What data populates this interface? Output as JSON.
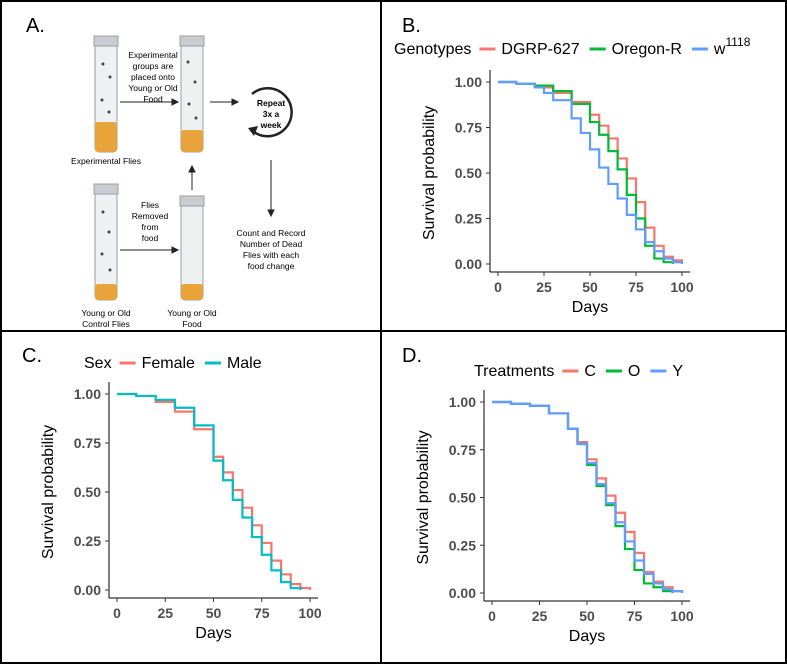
{
  "panel_a": {
    "label": "A.",
    "note_top": [
      "Experimental",
      "groups are",
      "placed onto",
      "Young or Old",
      "Food"
    ],
    "repeat": [
      "Repeat",
      "3x a",
      "week"
    ],
    "experimental_flies": "Experimental Flies",
    "flies_removed": [
      "Flies",
      "Removed",
      "from",
      "food"
    ],
    "count_record": [
      "Count and Record",
      "Number of Dead",
      "Flies with each",
      "food change"
    ],
    "control_flies": [
      "Young or Old",
      "Control Flies"
    ],
    "food": [
      "Young or Old",
      "Food"
    ]
  },
  "chart_data": [
    {
      "panel_label": "B.",
      "type": "line",
      "legend_title": "Genotypes",
      "series": [
        {
          "name": "DGRP-627",
          "color": "#F8766D",
          "x": [
            0,
            10,
            20,
            30,
            40,
            50,
            55,
            60,
            65,
            70,
            75,
            80,
            85,
            90,
            95,
            100
          ],
          "y": [
            1.0,
            0.99,
            0.97,
            0.94,
            0.89,
            0.82,
            0.76,
            0.69,
            0.58,
            0.47,
            0.34,
            0.2,
            0.1,
            0.04,
            0.02,
            0.0
          ]
        },
        {
          "name": "Oregon-R",
          "color": "#00BA38",
          "x": [
            0,
            10,
            20,
            30,
            40,
            50,
            55,
            60,
            65,
            70,
            75,
            80,
            85,
            90,
            95
          ],
          "y": [
            1.0,
            0.99,
            0.98,
            0.95,
            0.88,
            0.78,
            0.71,
            0.62,
            0.52,
            0.38,
            0.25,
            0.1,
            0.03,
            0.01,
            0.0
          ]
        },
        {
          "name": "w1118",
          "name_base": "w",
          "name_sup": "1118",
          "color": "#619CFF",
          "x": [
            0,
            10,
            20,
            25,
            30,
            40,
            45,
            50,
            55,
            60,
            65,
            70,
            75,
            80,
            85,
            90,
            95,
            100
          ],
          "y": [
            1.0,
            0.99,
            0.97,
            0.94,
            0.9,
            0.8,
            0.72,
            0.63,
            0.53,
            0.44,
            0.36,
            0.27,
            0.19,
            0.12,
            0.07,
            0.03,
            0.01,
            0.0
          ]
        }
      ],
      "xlabel": "Days",
      "ylabel": "Survival probability",
      "xlim": [
        0,
        100
      ],
      "ylim": [
        0,
        1
      ],
      "xticks": [
        "0",
        "25",
        "50",
        "75",
        "100"
      ],
      "yticks": [
        "0.00",
        "0.25",
        "0.50",
        "0.75",
        "1.00"
      ]
    },
    {
      "panel_label": "C.",
      "type": "line",
      "legend_title": "Sex",
      "series": [
        {
          "name": "Female",
          "color": "#F8766D",
          "x": [
            0,
            10,
            20,
            30,
            40,
            50,
            55,
            60,
            65,
            70,
            75,
            80,
            85,
            90,
            95,
            100
          ],
          "y": [
            1.0,
            0.99,
            0.96,
            0.91,
            0.82,
            0.68,
            0.6,
            0.51,
            0.42,
            0.33,
            0.24,
            0.15,
            0.08,
            0.03,
            0.01,
            0.0
          ]
        },
        {
          "name": "Male",
          "color": "#00BFC4",
          "x": [
            0,
            10,
            20,
            30,
            40,
            50,
            55,
            60,
            65,
            70,
            75,
            80,
            85,
            90,
            95
          ],
          "y": [
            1.0,
            0.99,
            0.97,
            0.93,
            0.84,
            0.66,
            0.56,
            0.46,
            0.37,
            0.27,
            0.18,
            0.1,
            0.04,
            0.01,
            0.0
          ]
        }
      ],
      "xlabel": "Days",
      "ylabel": "Survival probability",
      "xlim": [
        0,
        100
      ],
      "ylim": [
        0,
        1
      ],
      "xticks": [
        "0",
        "25",
        "50",
        "75",
        "100"
      ],
      "yticks": [
        "0.00",
        "0.25",
        "0.50",
        "0.75",
        "1.00"
      ]
    },
    {
      "panel_label": "D.",
      "type": "line",
      "legend_title": "Treatments",
      "series": [
        {
          "name": "C",
          "color": "#F8766D",
          "x": [
            0,
            10,
            20,
            30,
            40,
            45,
            50,
            55,
            60,
            65,
            70,
            75,
            80,
            85,
            90,
            95,
            100
          ],
          "y": [
            1.0,
            0.99,
            0.98,
            0.94,
            0.86,
            0.79,
            0.7,
            0.6,
            0.51,
            0.42,
            0.32,
            0.21,
            0.11,
            0.06,
            0.03,
            0.01,
            0.0
          ]
        },
        {
          "name": "O",
          "color": "#00BA38",
          "x": [
            0,
            10,
            20,
            30,
            40,
            45,
            50,
            55,
            60,
            65,
            70,
            75,
            80,
            85,
            90,
            95
          ],
          "y": [
            1.0,
            0.99,
            0.98,
            0.94,
            0.86,
            0.78,
            0.67,
            0.56,
            0.46,
            0.35,
            0.23,
            0.12,
            0.05,
            0.03,
            0.01,
            0.0
          ]
        },
        {
          "name": "Y",
          "color": "#619CFF",
          "x": [
            0,
            10,
            20,
            30,
            40,
            45,
            50,
            55,
            60,
            65,
            70,
            75,
            80,
            85,
            90,
            95,
            100
          ],
          "y": [
            1.0,
            0.99,
            0.98,
            0.94,
            0.86,
            0.78,
            0.68,
            0.57,
            0.47,
            0.37,
            0.27,
            0.17,
            0.1,
            0.05,
            0.02,
            0.01,
            0.0
          ]
        }
      ],
      "xlabel": "Days",
      "ylabel": "Survival probability",
      "xlim": [
        0,
        100
      ],
      "ylim": [
        0,
        1
      ],
      "xticks": [
        "0",
        "25",
        "50",
        "75",
        "100"
      ],
      "yticks": [
        "0.00",
        "0.25",
        "0.50",
        "0.75",
        "1.00"
      ]
    }
  ]
}
